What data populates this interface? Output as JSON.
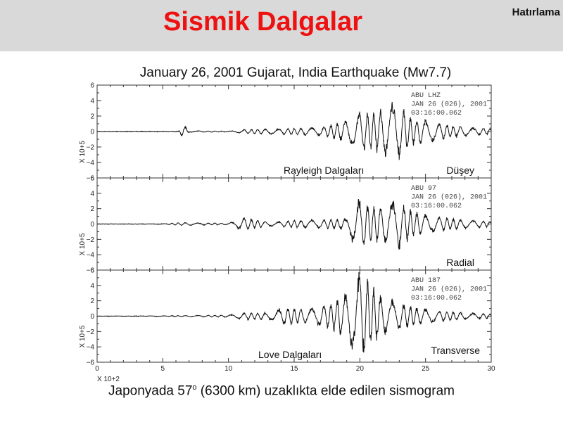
{
  "header": {
    "title": "Sismik Dalgalar",
    "badge": "Hatırlama",
    "background": "#d9d9d9",
    "title_color": "#ee1111"
  },
  "caption": {
    "before": "Japonyada 57",
    "degree": "o",
    "after": " (6300 km) uzaklıkta elde edilen sismogram"
  },
  "chart_data": {
    "type": "line",
    "title": "January 26, 2001 Gujarat, India Earthquake (Mw7.7)",
    "x_axis": {
      "range": [
        0,
        30
      ],
      "ticks": [
        "0",
        "5",
        "10",
        "15",
        "20",
        "25",
        "30"
      ],
      "scale_label": "X 10+2"
    },
    "y_axis": {
      "range": [
        -6,
        6
      ],
      "ticks": [
        "6",
        "4",
        "2",
        "0",
        "−2",
        "−4",
        "−6"
      ],
      "scale_label": "X 10+5"
    },
    "panels": [
      {
        "name": "vertical",
        "header": [
          "ABU   LHZ",
          "JAN 26 (026), 2001",
          "03:16:00.062"
        ],
        "wave_label": "Rayleigh Dalgaları",
        "component_label": "Düşey",
        "trace": [
          [
            0,
            0
          ],
          [
            5,
            0.02
          ],
          [
            6.2,
            0.05
          ],
          [
            6.5,
            0.9
          ],
          [
            6.7,
            -0.8
          ],
          [
            7,
            0.1
          ],
          [
            10,
            0.05
          ],
          [
            11.3,
            0.3
          ],
          [
            14,
            0.4
          ],
          [
            17,
            0.6
          ],
          [
            18.5,
            1.2
          ],
          [
            19.7,
            2.5
          ],
          [
            20.1,
            2.8
          ],
          [
            21,
            2.5
          ],
          [
            22,
            3.5
          ],
          [
            22.5,
            4
          ],
          [
            22.8,
            -4
          ],
          [
            24,
            2
          ],
          [
            26,
            1.2
          ],
          [
            28,
            0.6
          ],
          [
            30,
            0.4
          ]
        ]
      },
      {
        "name": "radial",
        "header": [
          "ABU   97",
          "JAN 26 (026), 2001",
          "03:16:00.062"
        ],
        "wave_label": "",
        "component_label": "Radial",
        "trace": [
          [
            0,
            0
          ],
          [
            5,
            0.02
          ],
          [
            6.3,
            0.2
          ],
          [
            10,
            0.1
          ],
          [
            11.3,
            1
          ],
          [
            11.6,
            -0.8
          ],
          [
            13,
            0.3
          ],
          [
            15,
            0.5
          ],
          [
            17,
            0.6
          ],
          [
            19,
            0.8
          ],
          [
            19.8,
            3.8
          ],
          [
            20.2,
            -3.5
          ],
          [
            21,
            2.5
          ],
          [
            22,
            3
          ],
          [
            23,
            3.5
          ],
          [
            24,
            1.8
          ],
          [
            26,
            1
          ],
          [
            28,
            0.6
          ],
          [
            30,
            0.4
          ]
        ]
      },
      {
        "name": "transverse",
        "header": [
          "ABU   187",
          "JAN 26 (026), 2001",
          "03:16:00.062"
        ],
        "wave_label": "Love Dalgaları",
        "component_label": "Transverse",
        "trace": [
          [
            0,
            0
          ],
          [
            5,
            0.05
          ],
          [
            6.5,
            0.1
          ],
          [
            10,
            0.15
          ],
          [
            11.2,
            0.5
          ],
          [
            13,
            0.5
          ],
          [
            14.3,
            1.3
          ],
          [
            16,
            1
          ],
          [
            17,
            1.5
          ],
          [
            18,
            2
          ],
          [
            19,
            3.5
          ],
          [
            19.8,
            6
          ],
          [
            20.1,
            -6
          ],
          [
            21,
            4
          ],
          [
            22,
            2.5
          ],
          [
            23,
            2
          ],
          [
            24,
            1.3
          ],
          [
            26,
            0.8
          ],
          [
            28,
            0.5
          ],
          [
            30,
            0.3
          ]
        ]
      }
    ]
  }
}
